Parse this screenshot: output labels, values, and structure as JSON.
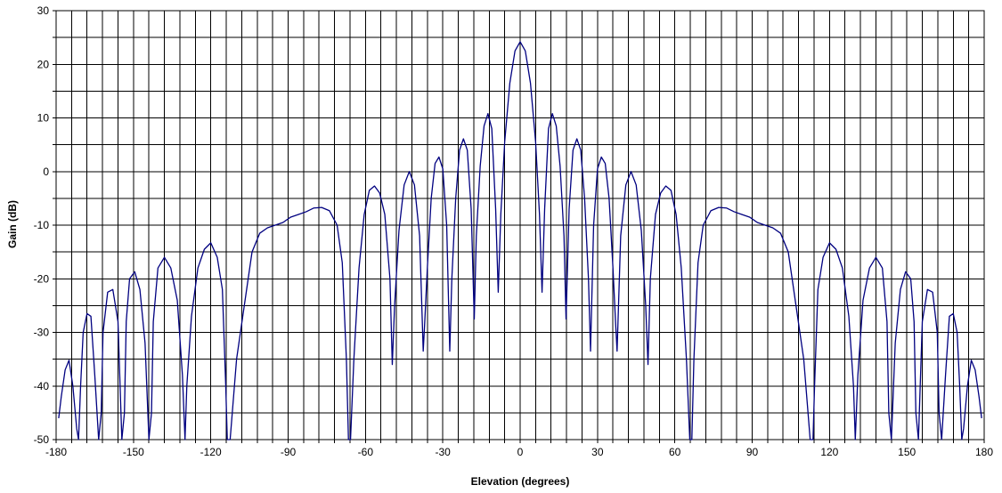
{
  "chart_data": {
    "type": "line",
    "title": "",
    "xlabel": "Elevation (degrees)",
    "ylabel": "Gain (dB)",
    "xlim": [
      -180,
      180
    ],
    "ylim": [
      -50,
      30
    ],
    "x_ticks": [
      -180,
      -150,
      -120,
      -90,
      -60,
      -30,
      0,
      30,
      60,
      90,
      120,
      150,
      180
    ],
    "y_ticks": [
      -50,
      -40,
      -30,
      -20,
      -10,
      0,
      10,
      20,
      30
    ],
    "minor_x_step": 6,
    "minor_y_step": 5,
    "grid": true,
    "legend": "none",
    "line_color": "#000080",
    "grid_color": "#000000",
    "series": [
      {
        "x": [
          0,
          2,
          4,
          6,
          7.5,
          8.5,
          9.5,
          11,
          12.5,
          14,
          15.5,
          17,
          17.8,
          19,
          20.5,
          22,
          23.5,
          25,
          26.5,
          27.3,
          28.5,
          30,
          31.5,
          33,
          34.5,
          36,
          37,
          37.6,
          39,
          41,
          43,
          45,
          47,
          48.7,
          49.6,
          50.5,
          52.5,
          54.5,
          56.5,
          58.5,
          60.5,
          62.5,
          64.5,
          65.8,
          66.6,
          67.4,
          69,
          71,
          74,
          77,
          80,
          83,
          86,
          89,
          92,
          95,
          98,
          101,
          104,
          107,
          110,
          112.5,
          113.6,
          114.2,
          115.5,
          117.5,
          120,
          122.5,
          125,
          127.5,
          129.3,
          130,
          131,
          133,
          135.5,
          138,
          140.5,
          142.3,
          143,
          144,
          145.5,
          147.5,
          149.5,
          151.5,
          152.8,
          153.5,
          154.5,
          156,
          158,
          160,
          161.8,
          162.5,
          163.5,
          165,
          166.5,
          168,
          169.5,
          170.5,
          171.3,
          172,
          173.5,
          175,
          176.5,
          178,
          179
        ],
        "y": [
          24.2,
          22.5,
          16.5,
          5.5,
          -8,
          -22.5,
          -7,
          8,
          10.8,
          8.5,
          1,
          -12,
          -27.5,
          -7,
          4,
          6.1,
          4,
          -5,
          -20,
          -33.5,
          -10,
          0.5,
          2.7,
          1.5,
          -5,
          -18,
          -28,
          -33.5,
          -12,
          -2.5,
          0,
          -2.5,
          -11,
          -25,
          -36,
          -20,
          -8,
          -4,
          -2.7,
          -3.5,
          -8,
          -18,
          -35,
          -50,
          -50,
          -35,
          -17,
          -10,
          -7.3,
          -6.7,
          -6.8,
          -7.5,
          -8,
          -8.5,
          -9.5,
          -10,
          -10.5,
          -11.5,
          -15,
          -25,
          -35,
          -50,
          -50,
          -40,
          -22,
          -16,
          -13.3,
          -14.5,
          -18,
          -27,
          -40,
          -50,
          -38,
          -24,
          -18,
          -16,
          -18,
          -28,
          -45,
          -50,
          -32,
          -22,
          -18.7,
          -20,
          -28,
          -45,
          -50,
          -28,
          -22,
          -22.5,
          -30,
          -45,
          -50,
          -38,
          -27,
          -26.5,
          -30,
          -40,
          -50,
          -48,
          -40,
          -35.2,
          -37,
          -42,
          -46
        ]
      }
    ],
    "symmetric_about_zero": true
  }
}
